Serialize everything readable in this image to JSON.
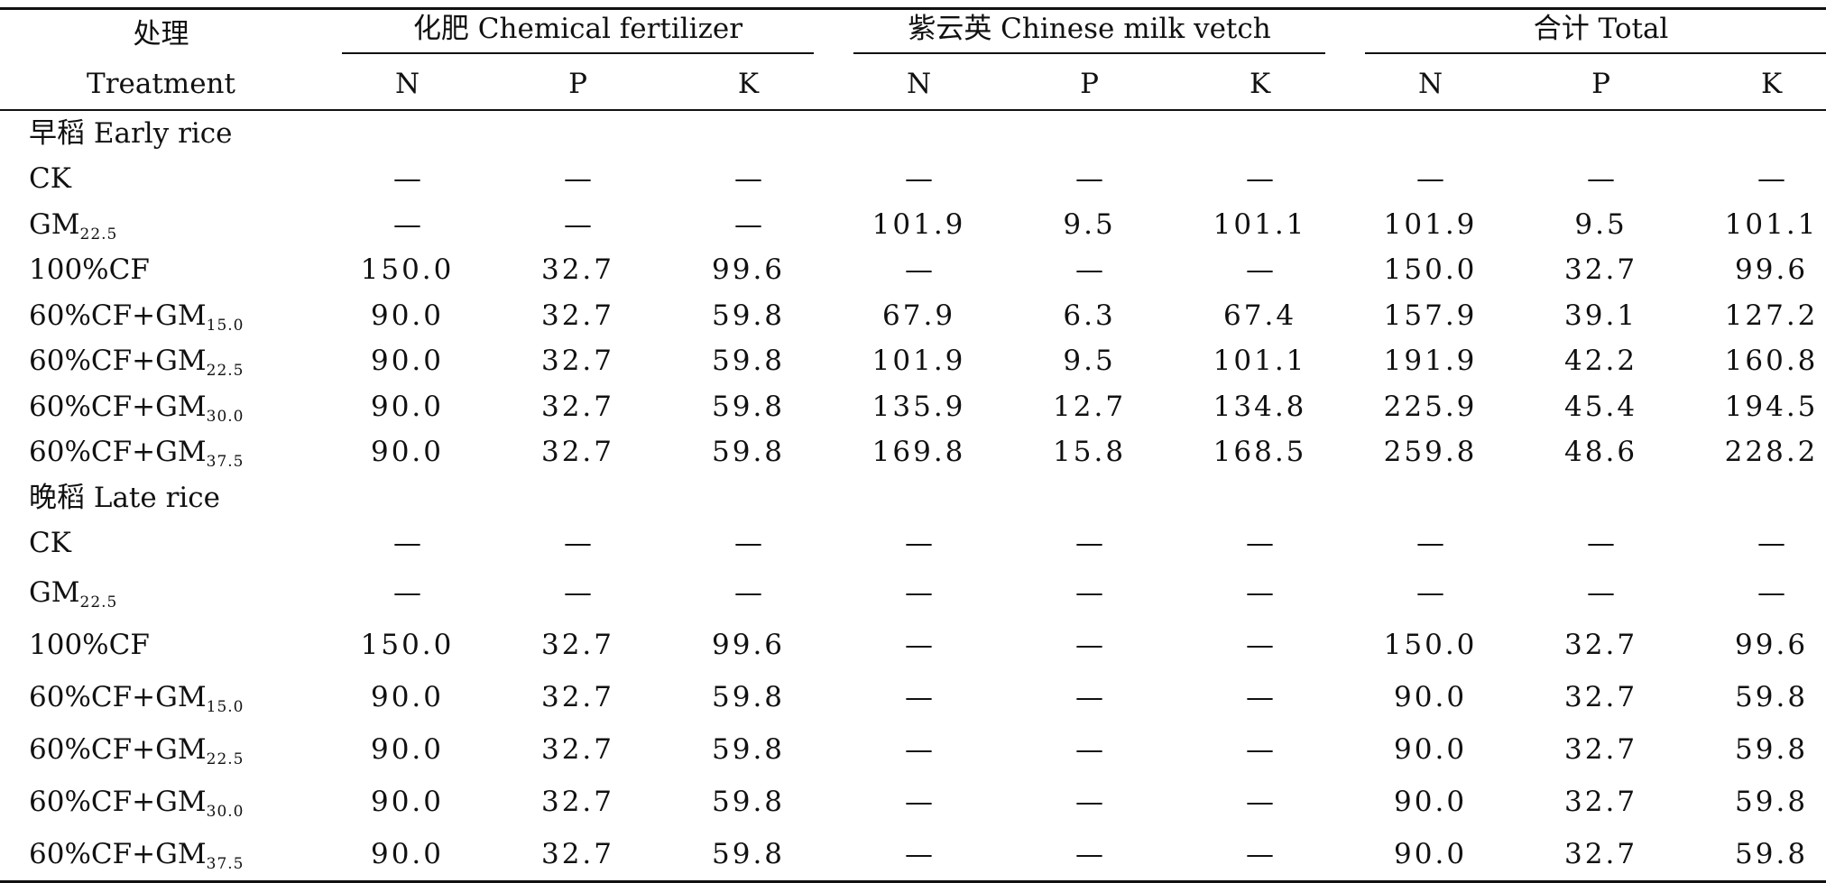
{
  "header": {
    "treatment_zh": "处理",
    "treatment_en": "Treatment",
    "groups": [
      "化肥 Chemical fertilizer",
      "紫云英 Chinese milk vetch",
      "合计 Total"
    ],
    "subcols": [
      "N",
      "P",
      "K",
      "N",
      "P",
      "K",
      "N",
      "P",
      "K"
    ]
  },
  "sections": [
    {
      "title": "早稻 Early rice",
      "rows": [
        {
          "label": "CK",
          "sub": "",
          "values": [
            "—",
            "—",
            "—",
            "—",
            "—",
            "—",
            "—",
            "—",
            "—"
          ]
        },
        {
          "label": "GM",
          "sub": "22.5",
          "values": [
            "—",
            "—",
            "—",
            "101.9",
            "9.5",
            "101.1",
            "101.9",
            "9.5",
            "101.1"
          ]
        },
        {
          "label": "100%CF",
          "sub": "",
          "values": [
            "150.0",
            "32.7",
            "99.6",
            "—",
            "—",
            "—",
            "150.0",
            "32.7",
            "99.6"
          ]
        },
        {
          "label": "60%CF+GM",
          "sub": "15.0",
          "values": [
            "90.0",
            "32.7",
            "59.8",
            "67.9",
            "6.3",
            "67.4",
            "157.9",
            "39.1",
            "127.2"
          ]
        },
        {
          "label": "60%CF+GM",
          "sub": "22.5",
          "values": [
            "90.0",
            "32.7",
            "59.8",
            "101.9",
            "9.5",
            "101.1",
            "191.9",
            "42.2",
            "160.8"
          ]
        },
        {
          "label": "60%CF+GM",
          "sub": "30.0",
          "values": [
            "90.0",
            "32.7",
            "59.8",
            "135.9",
            "12.7",
            "134.8",
            "225.9",
            "45.4",
            "194.5"
          ]
        },
        {
          "label": "60%CF+GM",
          "sub": "37.5",
          "values": [
            "90.0",
            "32.7",
            "59.8",
            "169.8",
            "15.8",
            "168.5",
            "259.8",
            "48.6",
            "228.2"
          ]
        }
      ]
    },
    {
      "title": "晚稻 Late rice",
      "rows": [
        {
          "label": "CK",
          "sub": "",
          "values": [
            "—",
            "—",
            "—",
            "—",
            "—",
            "—",
            "—",
            "—",
            "—"
          ]
        },
        {
          "label": "GM",
          "sub": "22.5",
          "values": [
            "—",
            "—",
            "—",
            "—",
            "—",
            "—",
            "—",
            "—",
            "—"
          ]
        },
        {
          "label": "100%CF",
          "sub": "",
          "values": [
            "150.0",
            "32.7",
            "99.6",
            "—",
            "—",
            "—",
            "150.0",
            "32.7",
            "99.6"
          ]
        },
        {
          "label": "60%CF+GM",
          "sub": "15.0",
          "values": [
            "90.0",
            "32.7",
            "59.8",
            "—",
            "—",
            "—",
            "90.0",
            "32.7",
            "59.8"
          ]
        },
        {
          "label": "60%CF+GM",
          "sub": "22.5",
          "values": [
            "90.0",
            "32.7",
            "59.8",
            "—",
            "—",
            "—",
            "90.0",
            "32.7",
            "59.8"
          ]
        },
        {
          "label": "60%CF+GM",
          "sub": "30.0",
          "values": [
            "90.0",
            "32.7",
            "59.8",
            "—",
            "—",
            "—",
            "90.0",
            "32.7",
            "59.8"
          ]
        },
        {
          "label": "60%CF+GM",
          "sub": "37.5",
          "values": [
            "90.0",
            "32.7",
            "59.8",
            "—",
            "—",
            "—",
            "90.0",
            "32.7",
            "59.8"
          ]
        }
      ]
    }
  ]
}
